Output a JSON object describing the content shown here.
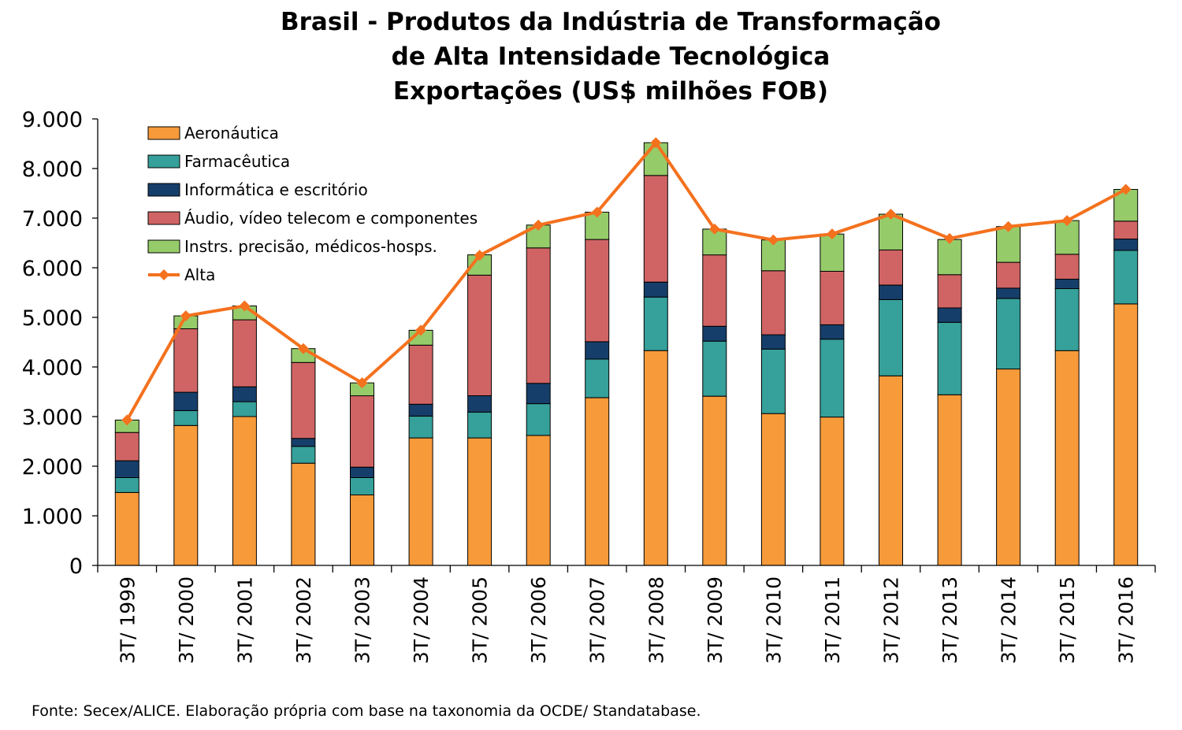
{
  "chart_data": {
    "type": "bar",
    "stacked": true,
    "title_lines": [
      "Brasil - Produtos da Indústria de Transformação",
      "de Alta Intensidade Tecnológica",
      "Exportações (US$ milhões FOB)"
    ],
    "xlabel": "",
    "ylabel": "",
    "ylim": [
      0,
      9000
    ],
    "yticks": [
      0,
      1000,
      2000,
      3000,
      4000,
      5000,
      6000,
      7000,
      8000,
      9000
    ],
    "ytick_labels": [
      "0",
      "1.000",
      "2.000",
      "3.000",
      "4.000",
      "5.000",
      "6.000",
      "7.000",
      "8.000",
      "9.000"
    ],
    "grid": false,
    "legend_position": "top-left",
    "categories": [
      "3T/ 1999",
      "3T/ 2000",
      "3T/ 2001",
      "3T/ 2002",
      "3T/ 2003",
      "3T/ 2004",
      "3T/ 2005",
      "3T/ 2006",
      "3T/ 2007",
      "3T/ 2008",
      "3T/ 2009",
      "3T/ 2010",
      "3T/ 2011",
      "3T/ 2012",
      "3T/ 2013",
      "3T/ 2014",
      "3T/ 2015",
      "3T/ 2016"
    ],
    "series": [
      {
        "name": "Aeronáutica",
        "color": "#F79A3A",
        "values": [
          1470,
          2820,
          3000,
          2060,
          1420,
          2570,
          2570,
          2620,
          3380,
          4330,
          3410,
          3060,
          2990,
          3820,
          3440,
          3960,
          4330,
          5270
        ]
      },
      {
        "name": "Farmacêutica",
        "color": "#36A09A",
        "values": [
          300,
          300,
          300,
          340,
          350,
          440,
          520,
          640,
          780,
          1080,
          1110,
          1300,
          1570,
          1540,
          1460,
          1420,
          1250,
          1080
        ]
      },
      {
        "name": "Informática e escritório",
        "color": "#163E6A",
        "values": [
          340,
          370,
          300,
          160,
          210,
          240,
          330,
          410,
          350,
          300,
          300,
          290,
          290,
          290,
          290,
          210,
          190,
          230
        ]
      },
      {
        "name": "Áudio, vídeo telecom e componentes",
        "color": "#D06464",
        "values": [
          570,
          1280,
          1350,
          1530,
          1440,
          1190,
          2430,
          2730,
          2060,
          2150,
          1440,
          1290,
          1080,
          710,
          670,
          520,
          500,
          360
        ]
      },
      {
        "name": "Instrs. precisão, médicos-hosps.",
        "color": "#96CB6A",
        "values": [
          250,
          260,
          280,
          280,
          260,
          300,
          410,
          460,
          550,
          660,
          520,
          620,
          750,
          720,
          710,
          720,
          680,
          640
        ]
      }
    ],
    "line_series": {
      "name": "Alta",
      "color": "#F4711E",
      "values": [
        2930,
        5030,
        5230,
        4370,
        3680,
        4740,
        6250,
        6860,
        7120,
        8520,
        6780,
        6560,
        6680,
        7080,
        6590,
        6830,
        6950,
        7580
      ]
    }
  },
  "source": "Fonte: Secex/ALICE. Elaboração própria com base na taxonomia da OCDE/ Standatabase."
}
